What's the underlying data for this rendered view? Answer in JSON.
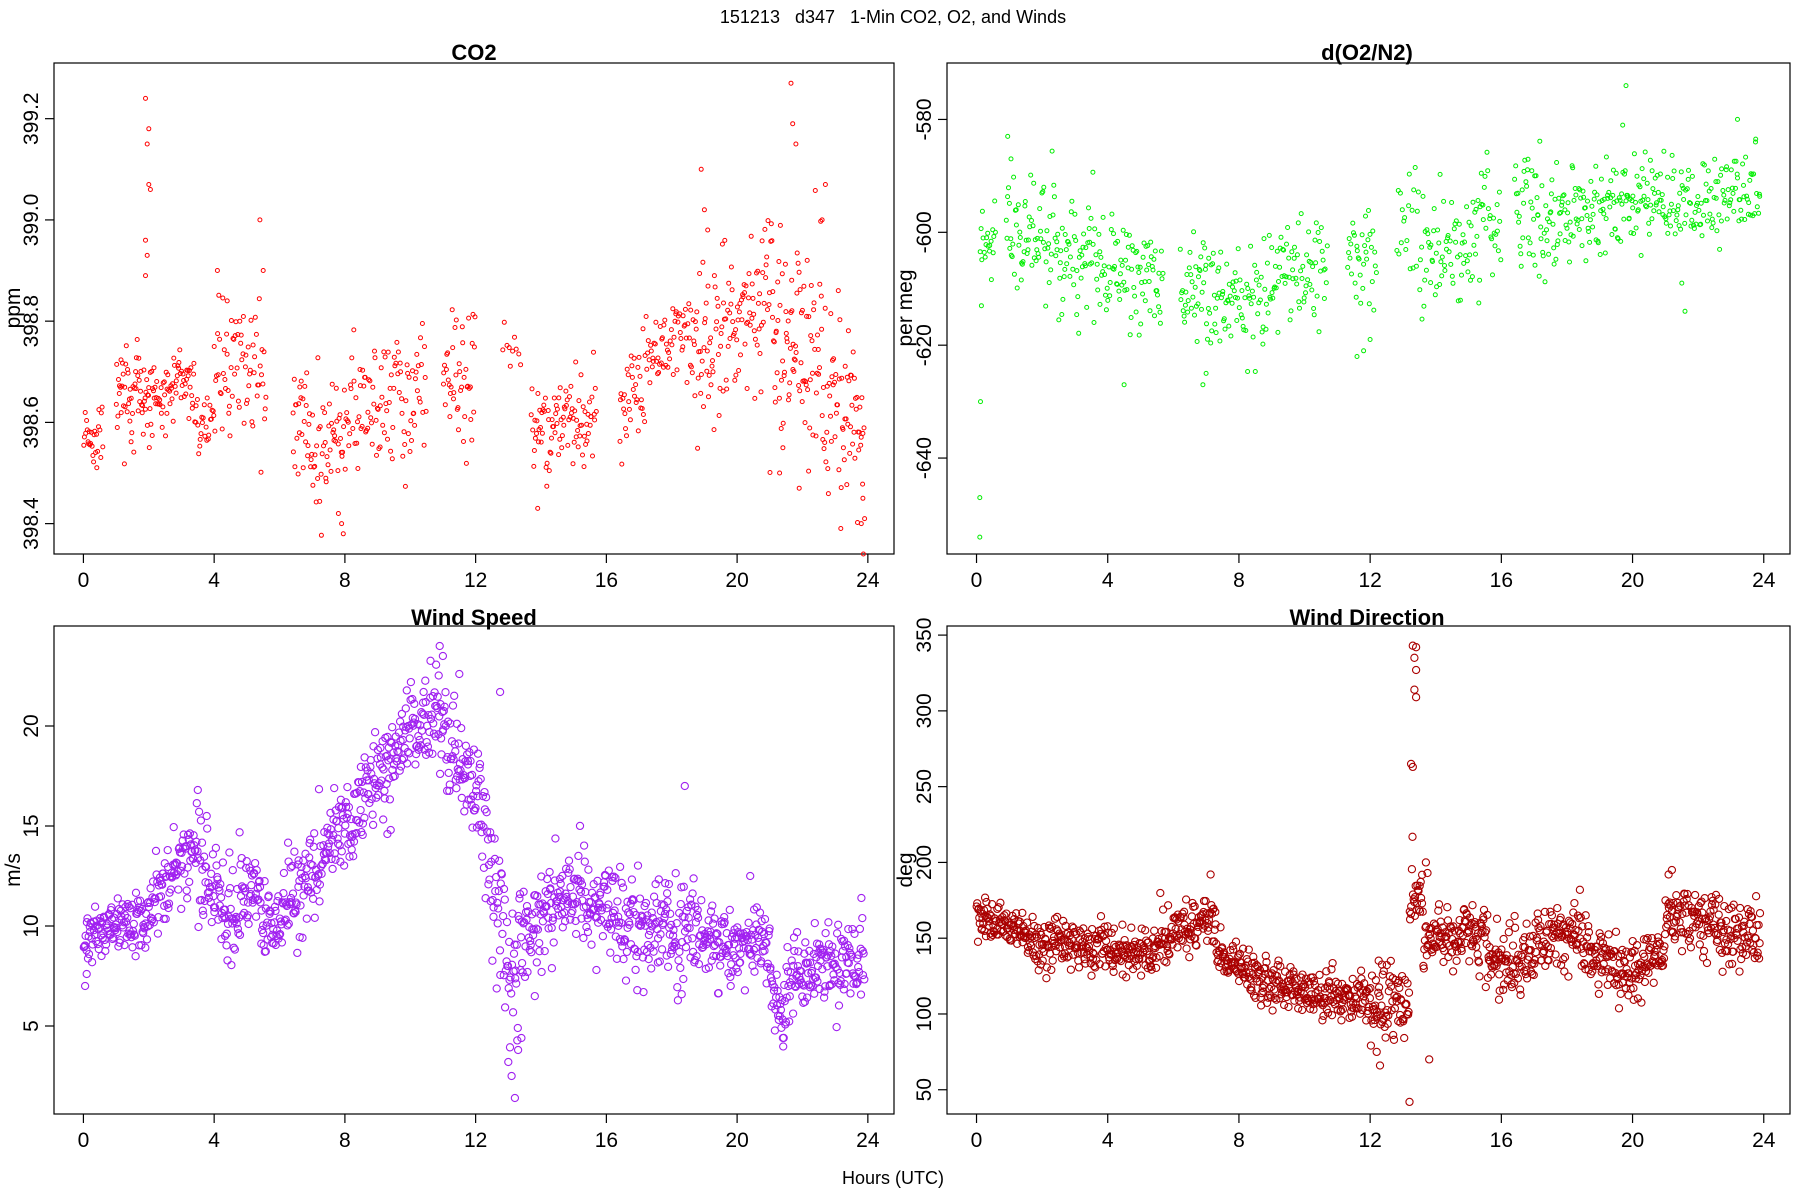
{
  "figure": {
    "title": "151213   d347   1-Min CO2, O2, and Winds",
    "xlabel": "Hours (UTC)"
  },
  "chart_data": [
    {
      "type": "scatter",
      "title": "CO2",
      "xlabel": "",
      "ylabel": "ppm",
      "color": "#ff0000",
      "marker": "small-open-circle",
      "xlim": [
        -0.9,
        24.8
      ],
      "ylim": [
        398.34,
        399.31
      ],
      "xticks": [
        0,
        4,
        8,
        12,
        16,
        20,
        24
      ],
      "yticks": [
        398.4,
        398.6,
        398.8,
        399.0,
        399.2
      ],
      "ytick_labels": [
        "398.4",
        "398.6",
        "398.8",
        "399.0",
        "399.2"
      ],
      "grid": false,
      "segments": [
        {
          "x0": 0.0,
          "x1": 0.6,
          "y0": 398.58,
          "y1": 398.55,
          "sd": 0.03,
          "n": 28
        },
        {
          "x0": 1.0,
          "x1": 2.2,
          "y0": 398.64,
          "y1": 398.66,
          "sd": 0.05,
          "n": 70
        },
        {
          "x0": 2.2,
          "x1": 3.4,
          "y0": 398.63,
          "y1": 398.7,
          "sd": 0.04,
          "n": 60
        },
        {
          "x0": 3.4,
          "x1": 4.0,
          "y0": 398.6,
          "y1": 398.62,
          "sd": 0.04,
          "n": 25
        },
        {
          "x0": 4.0,
          "x1": 5.6,
          "y0": 398.7,
          "y1": 398.66,
          "sd": 0.07,
          "n": 70
        },
        {
          "x0": 6.4,
          "x1": 7.9,
          "y0": 398.6,
          "y1": 398.55,
          "sd": 0.07,
          "n": 70
        },
        {
          "x0": 7.9,
          "x1": 10.5,
          "y0": 398.63,
          "y1": 398.63,
          "sd": 0.07,
          "n": 110
        },
        {
          "x0": 11.0,
          "x1": 12.0,
          "y0": 398.72,
          "y1": 398.65,
          "sd": 0.07,
          "n": 45
        },
        {
          "x0": 12.8,
          "x1": 13.4,
          "y0": 398.72,
          "y1": 398.72,
          "sd": 0.04,
          "n": 10
        },
        {
          "x0": 13.7,
          "x1": 15.7,
          "y0": 398.58,
          "y1": 398.62,
          "sd": 0.05,
          "n": 95
        },
        {
          "x0": 16.4,
          "x1": 17.2,
          "y0": 398.62,
          "y1": 398.68,
          "sd": 0.05,
          "n": 35
        },
        {
          "x0": 17.2,
          "x1": 18.6,
          "y0": 398.72,
          "y1": 398.79,
          "sd": 0.04,
          "n": 60
        },
        {
          "x0": 18.6,
          "x1": 21.0,
          "y0": 398.72,
          "y1": 398.85,
          "sd": 0.09,
          "n": 120
        },
        {
          "x0": 21.0,
          "x1": 22.6,
          "y0": 398.82,
          "y1": 398.7,
          "sd": 0.11,
          "n": 90
        },
        {
          "x0": 22.6,
          "x1": 23.9,
          "y0": 398.7,
          "y1": 398.55,
          "sd": 0.1,
          "n": 70
        }
      ],
      "points": [
        {
          "x": 1.9,
          "y": 399.24
        },
        {
          "x": 2.0,
          "y": 399.18
        },
        {
          "x": 1.95,
          "y": 399.15
        },
        {
          "x": 2.0,
          "y": 399.07
        },
        {
          "x": 2.05,
          "y": 399.06
        },
        {
          "x": 1.9,
          "y": 398.96
        },
        {
          "x": 1.95,
          "y": 398.93
        },
        {
          "x": 1.9,
          "y": 398.89
        },
        {
          "x": 5.4,
          "y": 399.0
        },
        {
          "x": 5.5,
          "y": 398.9
        },
        {
          "x": 4.4,
          "y": 398.84
        },
        {
          "x": 4.1,
          "y": 398.9
        },
        {
          "x": 7.8,
          "y": 398.42
        },
        {
          "x": 7.9,
          "y": 398.4
        },
        {
          "x": 7.95,
          "y": 398.38
        },
        {
          "x": 13.9,
          "y": 398.43
        },
        {
          "x": 18.9,
          "y": 399.1
        },
        {
          "x": 19.0,
          "y": 399.02
        },
        {
          "x": 19.1,
          "y": 398.98
        },
        {
          "x": 21.65,
          "y": 399.27
        },
        {
          "x": 21.7,
          "y": 399.19
        },
        {
          "x": 21.8,
          "y": 399.15
        },
        {
          "x": 22.7,
          "y": 399.07
        },
        {
          "x": 22.6,
          "y": 399.0
        },
        {
          "x": 23.8,
          "y": 398.4
        },
        {
          "x": 23.9,
          "y": 398.41
        },
        {
          "x": 23.85,
          "y": 398.45
        },
        {
          "x": 21.3,
          "y": 398.5
        },
        {
          "x": 21.9,
          "y": 398.47
        },
        {
          "x": 21.4,
          "y": 398.55
        }
      ]
    },
    {
      "type": "scatter",
      "title": "d(O2/N2)",
      "xlabel": "",
      "ylabel": "per meg",
      "color": "#00ee00",
      "marker": "small-open-circle",
      "xlim": [
        -0.9,
        24.8
      ],
      "ylim": [
        -657,
        -570
      ],
      "xticks": [
        0,
        4,
        8,
        12,
        16,
        20,
        24
      ],
      "yticks": [
        -640,
        -620,
        -600,
        -580
      ],
      "ytick_labels": [
        "-640",
        "-620",
        "-600",
        "-580"
      ],
      "grid": false,
      "segments": [
        {
          "x0": 0.1,
          "x1": 0.6,
          "y0": -602,
          "y1": -600,
          "sd": 3,
          "n": 20
        },
        {
          "x0": 0.9,
          "x1": 3.6,
          "y0": -600,
          "y1": -604,
          "sd": 5,
          "n": 120
        },
        {
          "x0": 3.6,
          "x1": 5.7,
          "y0": -605,
          "y1": -610,
          "sd": 5,
          "n": 90
        },
        {
          "x0": 6.2,
          "x1": 8.0,
          "y0": -610,
          "y1": -612,
          "sd": 5,
          "n": 80
        },
        {
          "x0": 8.0,
          "x1": 10.7,
          "y0": -612,
          "y1": -606,
          "sd": 5,
          "n": 110
        },
        {
          "x0": 11.3,
          "x1": 12.2,
          "y0": -605,
          "y1": -604,
          "sd": 4,
          "n": 35
        },
        {
          "x0": 12.8,
          "x1": 13.5,
          "y0": -598,
          "y1": -600,
          "sd": 5,
          "n": 20
        },
        {
          "x0": 13.5,
          "x1": 16.0,
          "y0": -605,
          "y1": -596,
          "sd": 5,
          "n": 100
        },
        {
          "x0": 16.4,
          "x1": 18.3,
          "y0": -598,
          "y1": -598,
          "sd": 5,
          "n": 85
        },
        {
          "x0": 18.3,
          "x1": 21.0,
          "y0": -596,
          "y1": -594,
          "sd": 4,
          "n": 120
        },
        {
          "x0": 21.0,
          "x1": 23.9,
          "y0": -596,
          "y1": -592,
          "sd": 4,
          "n": 120
        }
      ],
      "points": [
        {
          "x": 0.1,
          "y": -654
        },
        {
          "x": 0.1,
          "y": -647
        },
        {
          "x": 0.12,
          "y": -630
        },
        {
          "x": 0.15,
          "y": -613
        },
        {
          "x": 0.95,
          "y": -583
        },
        {
          "x": 1.05,
          "y": -587
        },
        {
          "x": 4.5,
          "y": -627
        },
        {
          "x": 6.9,
          "y": -627
        },
        {
          "x": 7.0,
          "y": -625
        },
        {
          "x": 11.6,
          "y": -622
        },
        {
          "x": 11.8,
          "y": -621
        },
        {
          "x": 12.0,
          "y": -619
        },
        {
          "x": 19.8,
          "y": -574
        },
        {
          "x": 19.7,
          "y": -581
        },
        {
          "x": 21.6,
          "y": -614
        },
        {
          "x": 21.5,
          "y": -609
        },
        {
          "x": 23.2,
          "y": -580
        }
      ]
    },
    {
      "type": "scatter",
      "title": "Wind Speed",
      "xlabel": "",
      "ylabel": "m/s",
      "color": "#a020f0",
      "marker": "open-circle",
      "xlim": [
        -0.9,
        24.8
      ],
      "ylim": [
        0.6,
        25.0
      ],
      "xticks": [
        0,
        4,
        8,
        12,
        16,
        20,
        24
      ],
      "yticks": [
        5,
        10,
        15,
        20
      ],
      "ytick_labels": [
        "5",
        "10",
        "15",
        "20"
      ],
      "grid": false,
      "segments": [
        {
          "x0": 0.0,
          "x1": 2.0,
          "y0": 9.5,
          "y1": 10.5,
          "sd": 0.7,
          "n": 120
        },
        {
          "x0": 2.0,
          "x1": 3.5,
          "y0": 10.8,
          "y1": 14.3,
          "sd": 0.9,
          "n": 90
        },
        {
          "x0": 3.5,
          "x1": 4.7,
          "y0": 13.0,
          "y1": 10.0,
          "sd": 1.1,
          "n": 72
        },
        {
          "x0": 4.7,
          "x1": 5.4,
          "y0": 11.5,
          "y1": 12.0,
          "sd": 1.1,
          "n": 42
        },
        {
          "x0": 5.4,
          "x1": 6.0,
          "y0": 10.5,
          "y1": 10.0,
          "sd": 1.0,
          "n": 36
        },
        {
          "x0": 6.0,
          "x1": 8.5,
          "y0": 10.5,
          "y1": 16.0,
          "sd": 1.2,
          "n": 150
        },
        {
          "x0": 8.5,
          "x1": 10.0,
          "y0": 17.0,
          "y1": 19.5,
          "sd": 1.2,
          "n": 90
        },
        {
          "x0": 10.0,
          "x1": 11.0,
          "y0": 20.0,
          "y1": 20.5,
          "sd": 1.3,
          "n": 60
        },
        {
          "x0": 11.0,
          "x1": 12.3,
          "y0": 19.5,
          "y1": 16.0,
          "sd": 1.5,
          "n": 78
        },
        {
          "x0": 12.3,
          "x1": 13.3,
          "y0": 14.0,
          "y1": 6.0,
          "sd": 2.0,
          "n": 60
        },
        {
          "x0": 13.3,
          "x1": 14.5,
          "y0": 9.0,
          "y1": 11.5,
          "sd": 1.5,
          "n": 72
        },
        {
          "x0": 14.5,
          "x1": 16.5,
          "y0": 12.0,
          "y1": 10.5,
          "sd": 1.3,
          "n": 120
        },
        {
          "x0": 16.5,
          "x1": 19.0,
          "y0": 10.0,
          "y1": 9.5,
          "sd": 1.3,
          "n": 150
        },
        {
          "x0": 19.0,
          "x1": 21.0,
          "y0": 9.0,
          "y1": 9.0,
          "sd": 1.0,
          "n": 120
        },
        {
          "x0": 21.0,
          "x1": 21.5,
          "y0": 7.0,
          "y1": 5.5,
          "sd": 0.8,
          "n": 30
        },
        {
          "x0": 21.5,
          "x1": 23.9,
          "y0": 7.5,
          "y1": 8.5,
          "sd": 1.0,
          "n": 144
        }
      ],
      "points": [
        {
          "x": 0.05,
          "y": 7.0
        },
        {
          "x": 0.1,
          "y": 7.6
        },
        {
          "x": 10.9,
          "y": 24.0
        },
        {
          "x": 11.0,
          "y": 23.5
        },
        {
          "x": 11.5,
          "y": 22.6
        },
        {
          "x": 12.75,
          "y": 21.7
        },
        {
          "x": 13.2,
          "y": 1.4
        },
        {
          "x": 13.1,
          "y": 2.5
        },
        {
          "x": 13.0,
          "y": 3.2
        },
        {
          "x": 13.3,
          "y": 3.8
        },
        {
          "x": 13.4,
          "y": 4.4
        },
        {
          "x": 18.4,
          "y": 17.0
        },
        {
          "x": 9.3,
          "y": 14.6
        },
        {
          "x": 9.4,
          "y": 14.8
        },
        {
          "x": 21.4,
          "y": 4.4
        },
        {
          "x": 20.4,
          "y": 12.5
        },
        {
          "x": 3.5,
          "y": 16.8
        }
      ]
    },
    {
      "type": "scatter",
      "title": "Wind Direction",
      "xlabel": "",
      "ylabel": "deg",
      "color": "#aa0000",
      "marker": "open-circle",
      "xlim": [
        -0.9,
        24.8
      ],
      "ylim": [
        34,
        356
      ],
      "xticks": [
        0,
        4,
        8,
        12,
        16,
        20,
        24
      ],
      "yticks": [
        50,
        100,
        150,
        200,
        250,
        300,
        350
      ],
      "ytick_labels": [
        "50",
        "100",
        "150",
        "200",
        "250",
        "300",
        "350"
      ],
      "grid": false,
      "segments": [
        {
          "x0": 0.0,
          "x1": 1.5,
          "y0": 165,
          "y1": 155,
          "sd": 6,
          "n": 90
        },
        {
          "x0": 1.5,
          "x1": 5.5,
          "y0": 150,
          "y1": 140,
          "sd": 8,
          "n": 240
        },
        {
          "x0": 5.5,
          "x1": 7.3,
          "y0": 150,
          "y1": 165,
          "sd": 9,
          "n": 108
        },
        {
          "x0": 7.3,
          "x1": 8.5,
          "y0": 140,
          "y1": 125,
          "sd": 9,
          "n": 72
        },
        {
          "x0": 8.5,
          "x1": 12.0,
          "y0": 120,
          "y1": 108,
          "sd": 8,
          "n": 210
        },
        {
          "x0": 12.0,
          "x1": 13.2,
          "y0": 112,
          "y1": 110,
          "sd": 14,
          "n": 72
        },
        {
          "x0": 13.2,
          "x1": 13.6,
          "y0": 170,
          "y1": 185,
          "sd": 10,
          "n": 24
        },
        {
          "x0": 13.6,
          "x1": 15.5,
          "y0": 150,
          "y1": 155,
          "sd": 11,
          "n": 114
        },
        {
          "x0": 15.5,
          "x1": 17.0,
          "y0": 140,
          "y1": 130,
          "sd": 11,
          "n": 90
        },
        {
          "x0": 17.0,
          "x1": 18.5,
          "y0": 150,
          "y1": 155,
          "sd": 10,
          "n": 90
        },
        {
          "x0": 18.5,
          "x1": 20.0,
          "y0": 140,
          "y1": 130,
          "sd": 10,
          "n": 90
        },
        {
          "x0": 20.0,
          "x1": 21.0,
          "y0": 130,
          "y1": 145,
          "sd": 10,
          "n": 60
        },
        {
          "x0": 21.0,
          "x1": 23.9,
          "y0": 165,
          "y1": 150,
          "sd": 11,
          "n": 170
        }
      ],
      "points": [
        {
          "x": 13.3,
          "y": 343
        },
        {
          "x": 13.4,
          "y": 342
        },
        {
          "x": 13.35,
          "y": 335
        },
        {
          "x": 13.4,
          "y": 327
        },
        {
          "x": 13.35,
          "y": 314
        },
        {
          "x": 13.4,
          "y": 309
        },
        {
          "x": 13.25,
          "y": 265
        },
        {
          "x": 13.3,
          "y": 263
        },
        {
          "x": 13.2,
          "y": 42
        },
        {
          "x": 12.2,
          "y": 75
        },
        {
          "x": 12.3,
          "y": 66
        },
        {
          "x": 13.8,
          "y": 70
        },
        {
          "x": 13.7,
          "y": 200
        },
        {
          "x": 13.75,
          "y": 193
        },
        {
          "x": 21.2,
          "y": 195
        },
        {
          "x": 21.1,
          "y": 192
        }
      ]
    }
  ]
}
